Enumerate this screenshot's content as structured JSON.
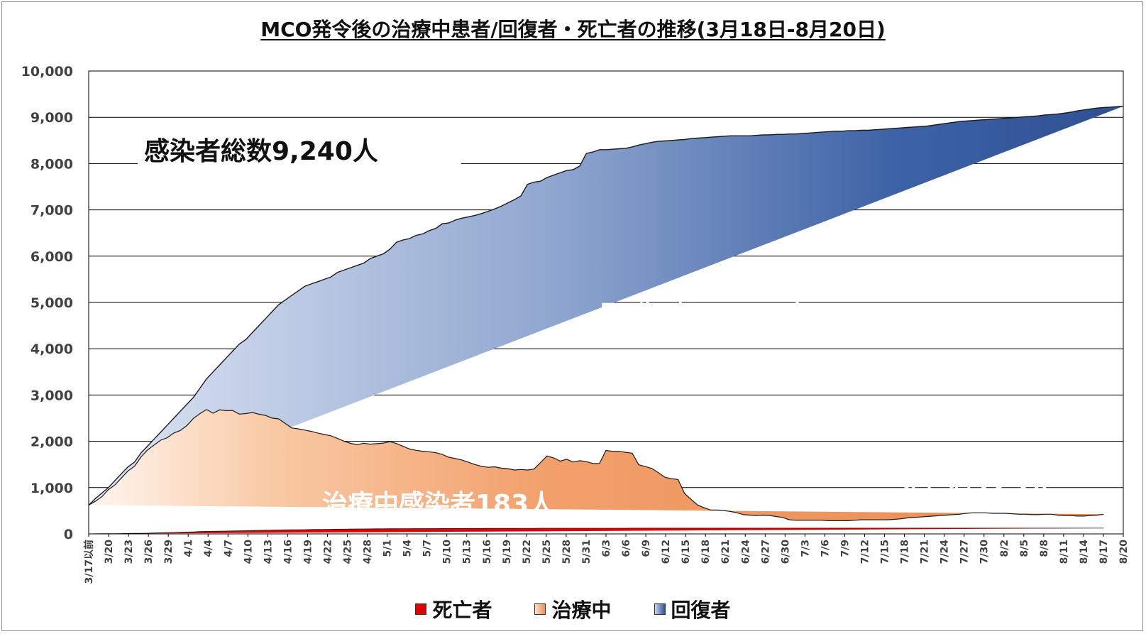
{
  "chart_data": {
    "type": "area",
    "stacked": true,
    "title": "MCO発令後の治療中患者/回復者・死亡者の推移(3月18日-8月20日)",
    "xlabel": "",
    "ylabel": "",
    "ylim": [
      0,
      10000
    ],
    "yticks": [
      "0",
      "1,000",
      "2,000",
      "3,000",
      "4,000",
      "5,000",
      "6,000",
      "7,000",
      "8,000",
      "9,000",
      "10,000"
    ],
    "grid": true,
    "legend_position": "bottom",
    "x_tick_labels": [
      "3/17以前",
      "3/20",
      "3/23",
      "3/26",
      "3/29",
      "4/1",
      "4/4",
      "4/7",
      "4/10",
      "4/13",
      "4/16",
      "4/19",
      "4/22",
      "4/25",
      "4/28",
      "5/1",
      "5/4",
      "5/7",
      "5/10",
      "5/13",
      "5/16",
      "5/19",
      "5/22",
      "5/25",
      "5/28",
      "5/31",
      "6/3",
      "6/6",
      "6/9",
      "6/12",
      "6/15",
      "6/18",
      "6/21",
      "6/24",
      "6/27",
      "6/30",
      "7/3",
      "7/6",
      "7/9",
      "7/12",
      "7/15",
      "7/18",
      "7/21",
      "7/24",
      "7/27",
      "7/30",
      "8/2",
      "8/5",
      "8/8",
      "8/11",
      "8/14",
      "8/17",
      "8/20"
    ],
    "series": [
      {
        "name": "死亡者",
        "color": "#e00000",
        "values": [
          2,
          3,
          4,
          5,
          6,
          8,
          10,
          12,
          14,
          16,
          20,
          25,
          28,
          30,
          35,
          40,
          45,
          50,
          55,
          57,
          59,
          62,
          65,
          68,
          70,
          73,
          76,
          80,
          82,
          85,
          88,
          89,
          90,
          92,
          95,
          97,
          98,
          100,
          102,
          103,
          105,
          107,
          108,
          109,
          110,
          111,
          112,
          113,
          113,
          114,
          115,
          115,
          115,
          115,
          116,
          116,
          117,
          117,
          118,
          118,
          118,
          119,
          119,
          120,
          120,
          120,
          121,
          121,
          121,
          122,
          122,
          122,
          122,
          122,
          122,
          122,
          122,
          122,
          123,
          123,
          123,
          123,
          123,
          124,
          124,
          124,
          124,
          124,
          124,
          124,
          125,
          125,
          125,
          125,
          125,
          125,
          125,
          125,
          125,
          125,
          125,
          125,
          125,
          125,
          125,
          125,
          125,
          125,
          125,
          125,
          125,
          125,
          125,
          125,
          125,
          125,
          125,
          125,
          125,
          125,
          125,
          125,
          125,
          125,
          125,
          125,
          125,
          125,
          125,
          125,
          125,
          125,
          125,
          125,
          125,
          125,
          125,
          125,
          125,
          125,
          125,
          125,
          125,
          125,
          125,
          125,
          125,
          125,
          125,
          125,
          125,
          125,
          125,
          125,
          125,
          125
        ]
      },
      {
        "name": "治療中",
        "color": "#f4a06a",
        "values": [
          620,
          700,
          800,
          950,
          1050,
          1200,
          1350,
          1450,
          1650,
          1800,
          1900,
          2000,
          2050,
          2150,
          2200,
          2300,
          2450,
          2550,
          2630,
          2550,
          2620,
          2600,
          2600,
          2520,
          2530,
          2550,
          2510,
          2480,
          2420,
          2400,
          2300,
          2200,
          2180,
          2150,
          2120,
          2080,
          2050,
          2020,
          1960,
          1900,
          1850,
          1820,
          1850,
          1830,
          1840,
          1850,
          1880,
          1840,
          1780,
          1720,
          1690,
          1670,
          1660,
          1640,
          1600,
          1540,
          1510,
          1480,
          1430,
          1380,
          1340,
          1320,
          1330,
          1300,
          1290,
          1260,
          1270,
          1260,
          1280,
          1420,
          1560,
          1520,
          1450,
          1490,
          1430,
          1460,
          1440,
          1400,
          1400,
          1680,
          1660,
          1660,
          1640,
          1620,
          1370,
          1330,
          1290,
          1200,
          1100,
          1070,
          1050,
          750,
          620,
          500,
          440,
          390,
          390,
          380,
          360,
          330,
          290,
          280,
          270,
          280,
          270,
          250,
          230,
          180,
          170,
          170,
          170,
          170,
          170,
          160,
          160,
          160,
          160,
          170,
          180,
          180,
          180,
          180,
          180,
          190,
          200,
          220,
          230,
          240,
          250,
          260,
          270,
          280,
          290,
          300,
          320,
          330,
          330,
          330,
          320,
          320,
          320,
          310,
          300,
          300,
          290,
          290,
          300,
          300,
          280,
          270,
          270,
          260,
          260,
          270,
          280,
          300,
          300,
          290,
          270,
          250,
          230,
          220,
          200,
          190,
          183
        ]
      },
      {
        "name": "回復者",
        "color": "#2f5194",
        "totals": [
          620,
          760,
          880,
          1000,
          1150,
          1300,
          1450,
          1550,
          1750,
          1900,
          2050,
          2200,
          2350,
          2500,
          2650,
          2800,
          2950,
          3150,
          3350,
          3500,
          3650,
          3800,
          3950,
          4100,
          4200,
          4350,
          4500,
          4650,
          4800,
          4950,
          5050,
          5150,
          5250,
          5350,
          5400,
          5450,
          5500,
          5550,
          5650,
          5700,
          5750,
          5800,
          5850,
          5950,
          6000,
          6050,
          6150,
          6300,
          6350,
          6380,
          6450,
          6480,
          6550,
          6600,
          6700,
          6720,
          6780,
          6820,
          6850,
          6880,
          6920,
          6970,
          7020,
          7080,
          7150,
          7220,
          7300,
          7550,
          7600,
          7620,
          7700,
          7750,
          7800,
          7850,
          7870,
          7950,
          8220,
          8250,
          8300,
          8300,
          8310,
          8320,
          8330,
          8360,
          8400,
          8430,
          8460,
          8480,
          8490,
          8500,
          8510,
          8520,
          8540,
          8550,
          8560,
          8570,
          8580,
          8590,
          8600,
          8600,
          8600,
          8600,
          8610,
          8620,
          8620,
          8630,
          8630,
          8640,
          8640,
          8650,
          8660,
          8670,
          8680,
          8690,
          8700,
          8700,
          8710,
          8710,
          8720,
          8720,
          8730,
          8740,
          8750,
          8760,
          8770,
          8780,
          8790,
          8800,
          8810,
          8830,
          8850,
          8870,
          8890,
          8910,
          8920,
          8930,
          8940,
          8950,
          8960,
          8970,
          8980,
          8990,
          9000,
          9010,
          9020,
          9030,
          9050,
          9060,
          9070,
          9090,
          9110,
          9140,
          9160,
          9180,
          9200,
          9210,
          9220,
          9230,
          9240
        ]
      }
    ],
    "annotations": [
      {
        "text": "感染者総数9,240人",
        "color": "#111111"
      },
      {
        "text": "回 復 者 8,932人",
        "color": "#ffffff"
      },
      {
        "text": "治療中感染者183人",
        "color": "#ffffff"
      },
      {
        "text": "死亡者125人",
        "color": "#ffffff"
      }
    ]
  },
  "legend": [
    {
      "label": "死亡者",
      "color": "#e00000"
    },
    {
      "label": "治療中",
      "color": "#f4a06a"
    },
    {
      "label": "回復者",
      "color": "#2f5194"
    }
  ]
}
